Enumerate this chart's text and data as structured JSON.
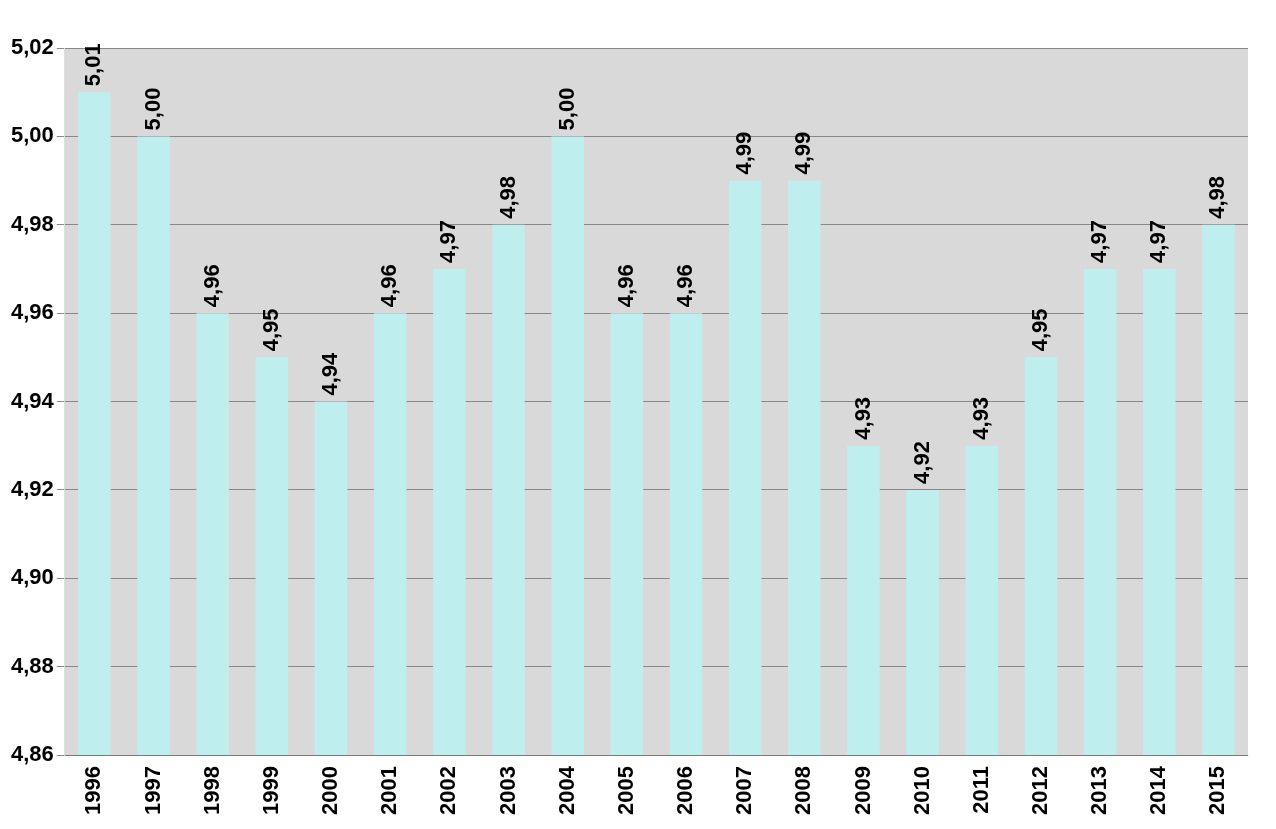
{
  "chart_data": {
    "type": "bar",
    "categories": [
      "1996",
      "1997",
      "1998",
      "1999",
      "2000",
      "2001",
      "2002",
      "2003",
      "2004",
      "2005",
      "2006",
      "2007",
      "2008",
      "2009",
      "2010",
      "2011",
      "2012",
      "2013",
      "2014",
      "2015"
    ],
    "values": [
      5.01,
      5.0,
      4.96,
      4.95,
      4.94,
      4.96,
      4.97,
      4.98,
      5.0,
      4.96,
      4.96,
      4.99,
      4.99,
      4.93,
      4.92,
      4.93,
      4.95,
      4.97,
      4.97,
      4.98
    ],
    "value_labels": [
      "5,01",
      "5,00",
      "4,96",
      "4,95",
      "4,94",
      "4,96",
      "4,97",
      "4,98",
      "5,00",
      "4,96",
      "4,96",
      "4,99",
      "4,99",
      "4,93",
      "4,92",
      "4,93",
      "4,95",
      "4,97",
      "4,97",
      "4,98"
    ],
    "color": "#bfeeee",
    "ylim": [
      4.86,
      5.02
    ],
    "yticks": [
      {
        "value": 4.86,
        "label": "4,86"
      },
      {
        "value": 4.88,
        "label": "4,88"
      },
      {
        "value": 4.9,
        "label": "4,90"
      },
      {
        "value": 4.92,
        "label": "4,92"
      },
      {
        "value": 4.94,
        "label": "4,94"
      },
      {
        "value": 4.96,
        "label": "4,96"
      },
      {
        "value": 4.98,
        "label": "4,98"
      },
      {
        "value": 5.0,
        "label": "5,00"
      },
      {
        "value": 5.02,
        "label": "5,02"
      }
    ],
    "grid": "y",
    "legend": false
  }
}
